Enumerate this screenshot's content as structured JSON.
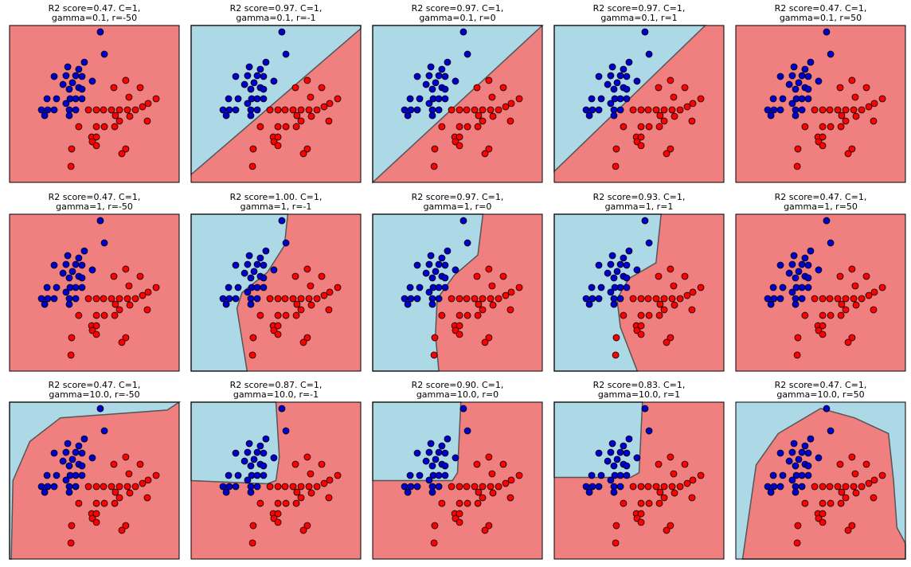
{
  "chart_data": [
    {
      "type": "scatter",
      "title": [
        "R2 score=0.47. C=1,",
        "gamma=0.1, r=-50"
      ]
    },
    {
      "type": "scatter",
      "title": [
        "R2 score=0.97. C=1,",
        "gamma=0.1, r=-1"
      ]
    },
    {
      "type": "scatter",
      "title": [
        "R2 score=0.97. C=1,",
        "gamma=0.1, r=0"
      ]
    },
    {
      "type": "scatter",
      "title": [
        "R2 score=0.97. C=1,",
        "gamma=0.1, r=1"
      ]
    },
    {
      "type": "scatter",
      "title": [
        "R2 score=0.47. C=1,",
        "gamma=0.1, r=50"
      ]
    },
    {
      "type": "scatter",
      "title": [
        "R2 score=0.47. C=1,",
        "gamma=1, r=-50"
      ]
    },
    {
      "type": "scatter",
      "title": [
        "R2 score=1.00. C=1,",
        "gamma=1, r=-1"
      ]
    },
    {
      "type": "scatter",
      "title": [
        "R2 score=0.97. C=1,",
        "gamma=1, r=0"
      ]
    },
    {
      "type": "scatter",
      "title": [
        "R2 score=0.93. C=1,",
        "gamma=1, r=1"
      ]
    },
    {
      "type": "scatter",
      "title": [
        "R2 score=0.47. C=1,",
        "gamma=1, r=50"
      ]
    },
    {
      "type": "scatter",
      "title": [
        "R2 score=0.47. C=1,",
        "gamma=10.0, r=-50"
      ]
    },
    {
      "type": "scatter",
      "title": [
        "R2 score=0.87. C=1,",
        "gamma=10.0, r=-1"
      ]
    },
    {
      "type": "scatter",
      "title": [
        "R2 score=0.90. C=1,",
        "gamma=10.0, r=0"
      ]
    },
    {
      "type": "scatter",
      "title": [
        "R2 score=0.83. C=1,",
        "gamma=10.0, r=1"
      ]
    },
    {
      "type": "scatter",
      "title": [
        "R2 score=0.47. C=1,",
        "gamma=10.0, r=50"
      ]
    }
  ],
  "points": {
    "xlim": [
      0,
      100
    ],
    "ylim": [
      0,
      100
    ],
    "classes": [
      {
        "color": "#0000cc",
        "x": [
          53.5,
          55.9,
          44.1,
          34.3,
          40.8,
          26.3,
          33.3,
          39.0,
          42.7,
          48.8,
          37.1,
          31.5,
          40.8,
          35.2,
          42.7,
          22.1,
          27.7,
          35.7,
          39.0,
          42.7,
          33.3,
          18.8,
          22.5,
          26.3,
          35.2,
          39.0,
          20.7,
          35.2
        ],
        "y": [
          95.9,
          81.7,
          76.6,
          73.6,
          72.1,
          67.5,
          68.0,
          68.0,
          67.5,
          64.5,
          63.5,
          62.4,
          60.4,
          59.4,
          59.4,
          53.3,
          53.3,
          53.3,
          53.3,
          53.3,
          50.3,
          46.2,
          46.2,
          46.2,
          46.2,
          46.2,
          42.6,
          42.6
        ]
      },
      {
        "color": "#ff0000",
        "x": [
          61.5,
          68.5,
          77.0,
          70.4,
          81.7,
          86.4,
          78.4,
          51.2,
          55.4,
          60.1,
          64.8,
          69.5,
          74.2,
          46.5,
          62.4,
          70.9,
          64.8,
          81.2,
          40.8,
          51.2,
          55.9,
          62.0,
          48.4,
          51.2,
          48.8,
          51.2,
          36.6,
          68.5,
          66.2,
          36.2
        ],
        "y": [
          60.4,
          65.0,
          60.4,
          54.3,
          50.3,
          53.3,
          48.2,
          46.2,
          46.2,
          46.2,
          46.2,
          46.2,
          46.2,
          46.2,
          42.6,
          42.1,
          39.1,
          39.1,
          35.5,
          35.5,
          35.5,
          35.5,
          28.9,
          28.9,
          25.9,
          23.4,
          21.3,
          21.3,
          18.3,
          10.2
        ]
      }
    ]
  }
}
